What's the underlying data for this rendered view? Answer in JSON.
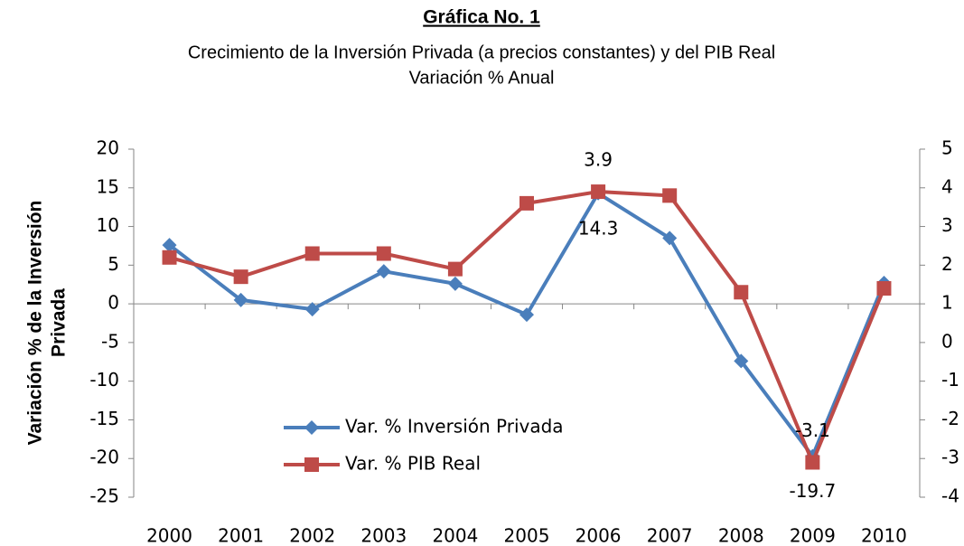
{
  "chart_data": {
    "type": "line",
    "title": "Gráfica No. 1",
    "subtitle": [
      "Crecimiento de la Inversión Privada (a precios constantes) y del PIB Real",
      "Variación % Anual"
    ],
    "ylabel": [
      "Variación % de la Inversión",
      "Privada"
    ],
    "categories": [
      "2000",
      "2001",
      "2002",
      "2003",
      "2004",
      "2005",
      "2006",
      "2007",
      "2008",
      "2009",
      "2010"
    ],
    "series": [
      {
        "name": "Var. % Inversión Privada",
        "color": "#4a7ebb",
        "marker": "diamond",
        "values": [
          7.6,
          0.5,
          -0.7,
          4.2,
          2.6,
          -1.4,
          14.3,
          8.5,
          -7.4,
          -19.7,
          2.7
        ],
        "value_labels": [
          null,
          null,
          null,
          null,
          null,
          null,
          "14.3",
          null,
          null,
          "-19.7",
          null
        ]
      },
      {
        "name": "Var. % PIB Real",
        "color": "#be4b48",
        "marker": "square",
        "axis": "y2",
        "values": [
          2.2,
          1.7,
          2.3,
          2.3,
          1.9,
          3.6,
          3.9,
          3.8,
          1.3,
          -3.1,
          1.4
        ],
        "value_labels": [
          null,
          null,
          null,
          null,
          null,
          null,
          "3.9",
          null,
          null,
          "-3.1",
          null
        ]
      }
    ],
    "ylim": [
      -25,
      20
    ],
    "yticks": [
      -25,
      -20,
      -15,
      -10,
      -5,
      0,
      5,
      10,
      15,
      20
    ],
    "y2lim": [
      -4,
      5
    ],
    "y2ticks": [
      -4,
      -3,
      -2,
      -1,
      0,
      1,
      2,
      3,
      4,
      5
    ],
    "legend": "lower left"
  }
}
